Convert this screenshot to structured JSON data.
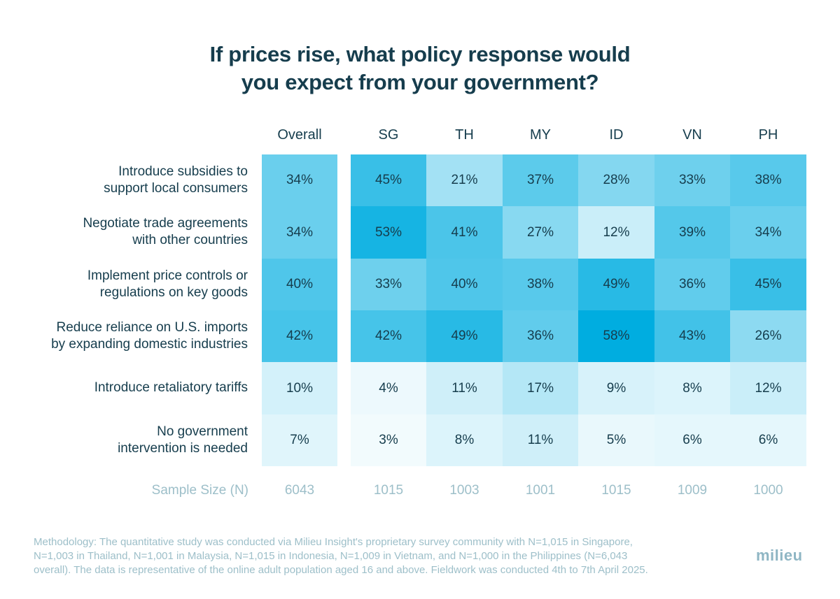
{
  "chart_data": {
    "type": "heatmap",
    "title": "If prices rise, what policy response would you expect from your government?",
    "title_lines": [
      "If prices rise, what policy response would",
      "you expect from your government?"
    ],
    "columns": [
      "Overall",
      "SG",
      "TH",
      "MY",
      "ID",
      "VN",
      "PH"
    ],
    "rows": [
      {
        "label_lines": [
          "Introduce subsidies to",
          "support local consumers"
        ],
        "label": "Introduce subsidies to support local consumers",
        "values": [
          34,
          45,
          21,
          37,
          28,
          33,
          38
        ]
      },
      {
        "label_lines": [
          "Negotiate trade agreements",
          "with other countries"
        ],
        "label": "Negotiate trade agreements with other countries",
        "values": [
          34,
          53,
          41,
          27,
          12,
          39,
          34
        ]
      },
      {
        "label_lines": [
          "Implement price controls or",
          "regulations on key goods"
        ],
        "label": "Implement price controls or regulations on key goods",
        "values": [
          40,
          33,
          40,
          38,
          49,
          36,
          45
        ]
      },
      {
        "label_lines": [
          "Reduce reliance on U.S. imports",
          "by expanding domestic industries"
        ],
        "label": "Reduce reliance on U.S. imports by expanding domestic industries",
        "values": [
          42,
          42,
          49,
          36,
          58,
          43,
          26
        ]
      },
      {
        "label_lines": [
          "Introduce retaliatory tariffs"
        ],
        "label": "Introduce retaliatory tariffs",
        "values": [
          10,
          4,
          11,
          17,
          9,
          8,
          12
        ]
      },
      {
        "label_lines": [
          "No government",
          "intervention is needed"
        ],
        "label": "No government intervention is needed",
        "values": [
          7,
          3,
          8,
          11,
          5,
          6,
          6
        ]
      }
    ],
    "value_suffix": "%",
    "sample_size": {
      "label": "Sample Size (N)",
      "values": [
        "6043",
        "1015",
        "1003",
        "1001",
        "1015",
        "1009",
        "1000"
      ]
    },
    "color_scale": {
      "low": "#ffffff",
      "high": "#00ade0",
      "max_value": 58
    }
  },
  "footer": {
    "methodology_lines": [
      "Methodology: The quantitative study was conducted via Milieu Insight's proprietary survey community with N=1,015 in Singapore,",
      "N=1,003 in Thailand, N=1,001  in Malaysia, N=1,015 in Indonesia, N=1,009 in Vietnam, and N=1,000 in the Philippines (N=6,043",
      "overall). The data is representative of the online adult population aged 16 and above. Fieldwork was conducted 4th to 7th April 2025."
    ],
    "logo": "milieu"
  }
}
